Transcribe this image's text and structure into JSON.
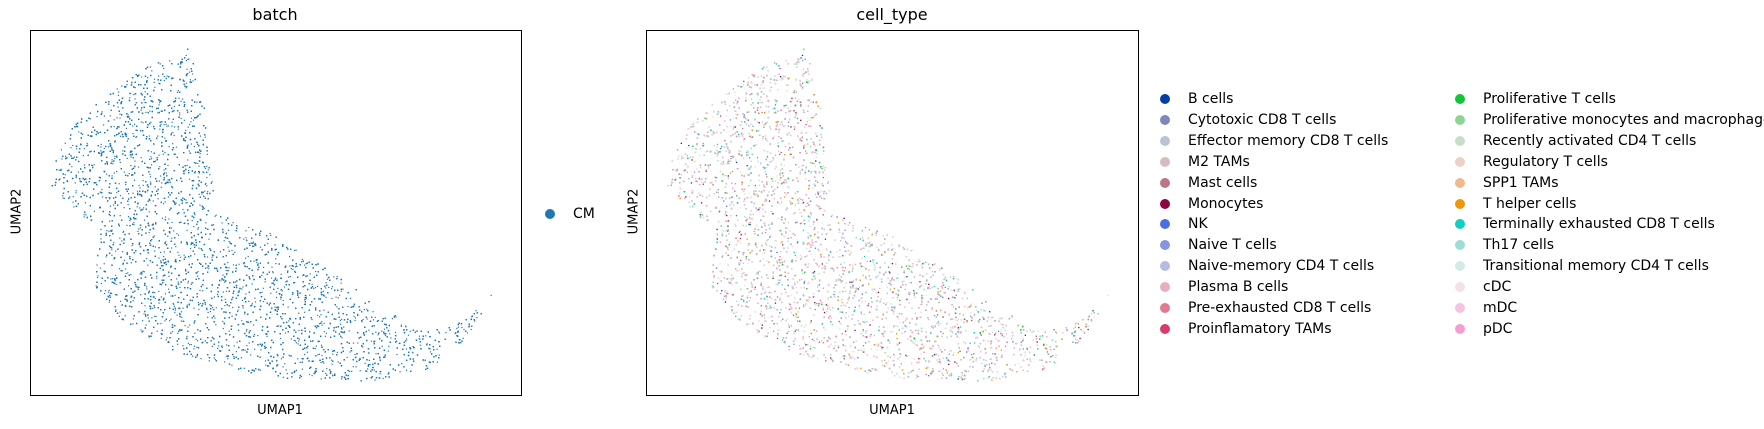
{
  "chart_data": [
    {
      "type": "scatter",
      "title": "batch",
      "xlabel": "UMAP1",
      "ylabel": "UMAP2",
      "grid": false,
      "legend": "right",
      "series": [
        {
          "name": "CM",
          "color": "#1f77b4"
        }
      ]
    },
    {
      "type": "scatter",
      "title": "cell_type",
      "xlabel": "UMAP1",
      "ylabel": "UMAP2",
      "grid": false,
      "legend": "right",
      "series": [
        {
          "name": "B cells",
          "color": "#023fa5"
        },
        {
          "name": "Cytotoxic CD8 T cells",
          "color": "#7d87b9"
        },
        {
          "name": "Effector memory CD8 T cells",
          "color": "#bec1d4"
        },
        {
          "name": "M2 TAMs",
          "color": "#d6bcc0"
        },
        {
          "name": "Mast cells",
          "color": "#bb7784"
        },
        {
          "name": "Monocytes",
          "color": "#8e063b"
        },
        {
          "name": "NK",
          "color": "#4a6fe3"
        },
        {
          "name": "Naive T cells",
          "color": "#8595e1"
        },
        {
          "name": "Naive-memory CD4 T cells",
          "color": "#b5bbe3"
        },
        {
          "name": "Plasma B cells",
          "color": "#e6afb9"
        },
        {
          "name": "Pre-exhausted CD8 T cells",
          "color": "#e07b91"
        },
        {
          "name": "Proinflamatory TAMs",
          "color": "#d33f6a"
        },
        {
          "name": "Proliferative T cells",
          "color": "#11c638"
        },
        {
          "name": "Proliferative monocytes and macrophages",
          "color": "#8dd593"
        },
        {
          "name": "Recently activated CD4 T cells",
          "color": "#c6dec7"
        },
        {
          "name": "Regulatory T cells",
          "color": "#ead3c6"
        },
        {
          "name": "SPP1 TAMs",
          "color": "#f0b98d"
        },
        {
          "name": "T helper cells",
          "color": "#ef9708"
        },
        {
          "name": "Terminally exhausted CD8 T cells",
          "color": "#0fcfc0"
        },
        {
          "name": "Th17 cells",
          "color": "#9cded6"
        },
        {
          "name": "Transitional memory CD4 T cells",
          "color": "#d5eae7"
        },
        {
          "name": "cDC",
          "color": "#f3e1eb"
        },
        {
          "name": "mDC",
          "color": "#f6c4e1"
        },
        {
          "name": "pDC",
          "color": "#f79cd4"
        }
      ]
    }
  ]
}
